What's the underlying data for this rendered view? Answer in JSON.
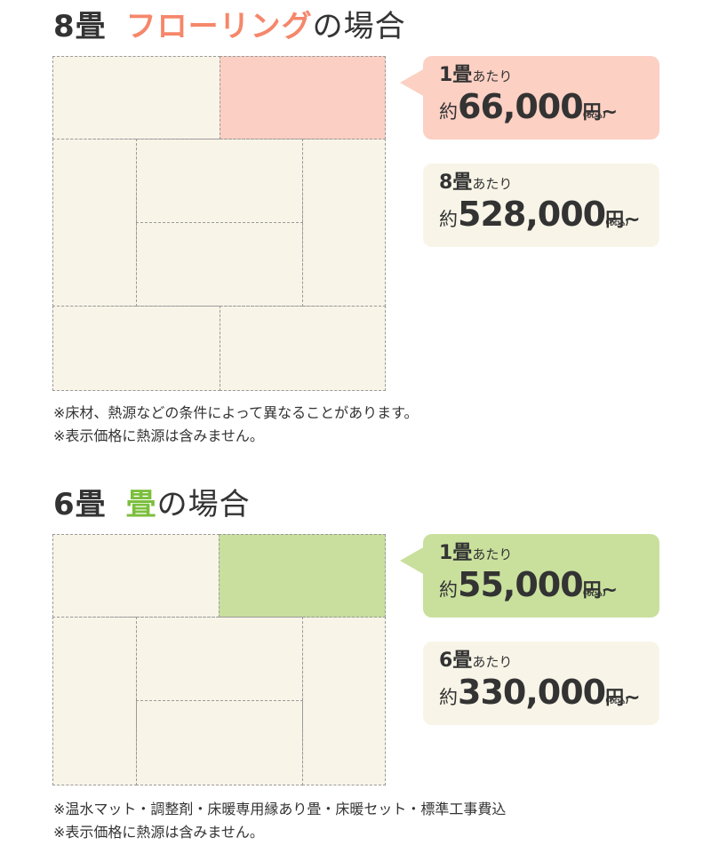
{
  "sections": [
    {
      "heading": {
        "count": "8畳",
        "accent": "フローリング",
        "suffix": "の場合"
      },
      "card_unit": {
        "unit_num": "1畳",
        "unit_text": "あたり",
        "approx": "約",
        "amount": "66,000",
        "yen": "円",
        "tax": "(税込)",
        "tilde": "~"
      },
      "card_total": {
        "unit_num": "8畳",
        "unit_text": "あたり",
        "approx": "約",
        "amount": "528,000",
        "yen": "円",
        "tax": "(税込)",
        "tilde": "~"
      },
      "notes": [
        "※床材、熱源などの条件によって異なることがあります。",
        "※表示価格に熱源は含みません。"
      ],
      "accent_color": "#f5876a"
    },
    {
      "heading": {
        "count": "6畳",
        "accent": "畳",
        "suffix": "の場合"
      },
      "card_unit": {
        "unit_num": "1畳",
        "unit_text": "あたり",
        "approx": "約",
        "amount": "55,000",
        "yen": "円",
        "tax": "(税込)",
        "tilde": "~"
      },
      "card_total": {
        "unit_num": "6畳",
        "unit_text": "あたり",
        "approx": "約",
        "amount": "330,000",
        "yen": "円",
        "tax": "(税込)",
        "tilde": "~"
      },
      "notes": [
        "※温水マット・調整剤・床暖専用縁あり畳・床暖セット・標準工事費込",
        "※表示価格に熱源は含みません。"
      ],
      "accent_color": "#7bbf3d"
    }
  ]
}
